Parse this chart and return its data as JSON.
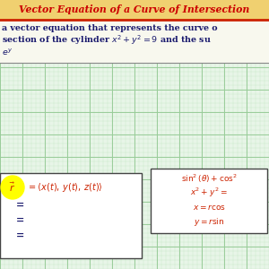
{
  "title": "Vector Equation of a Curve of Intersection",
  "title_color": "#cc0000",
  "title_bg_color": "#f0d070",
  "body_text_line1": "a vector equation that represents the curve o",
  "body_text_line2": "section of the cylinder $x^2 + y^2 = 9$ and the su",
  "body_text_line3": "$e^y$",
  "grid_color_major": "#99cc99",
  "grid_color_minor": "#c8e8c8",
  "grid_bg_color": "#e8f5e8",
  "box1_highlight": "#ffff00",
  "box2_lines": [
    "$\\sin^2(\\theta) + \\cos^2$",
    "$x^2 + y^2 =$",
    "$x = r\\cos$",
    "$y = r\\sin$"
  ],
  "header_line_color": "#cc2200",
  "text_color_dark": "#1a1a6e",
  "text_color_red": "#cc2200",
  "fig_w": 3.0,
  "fig_h": 3.0,
  "dpi": 100
}
